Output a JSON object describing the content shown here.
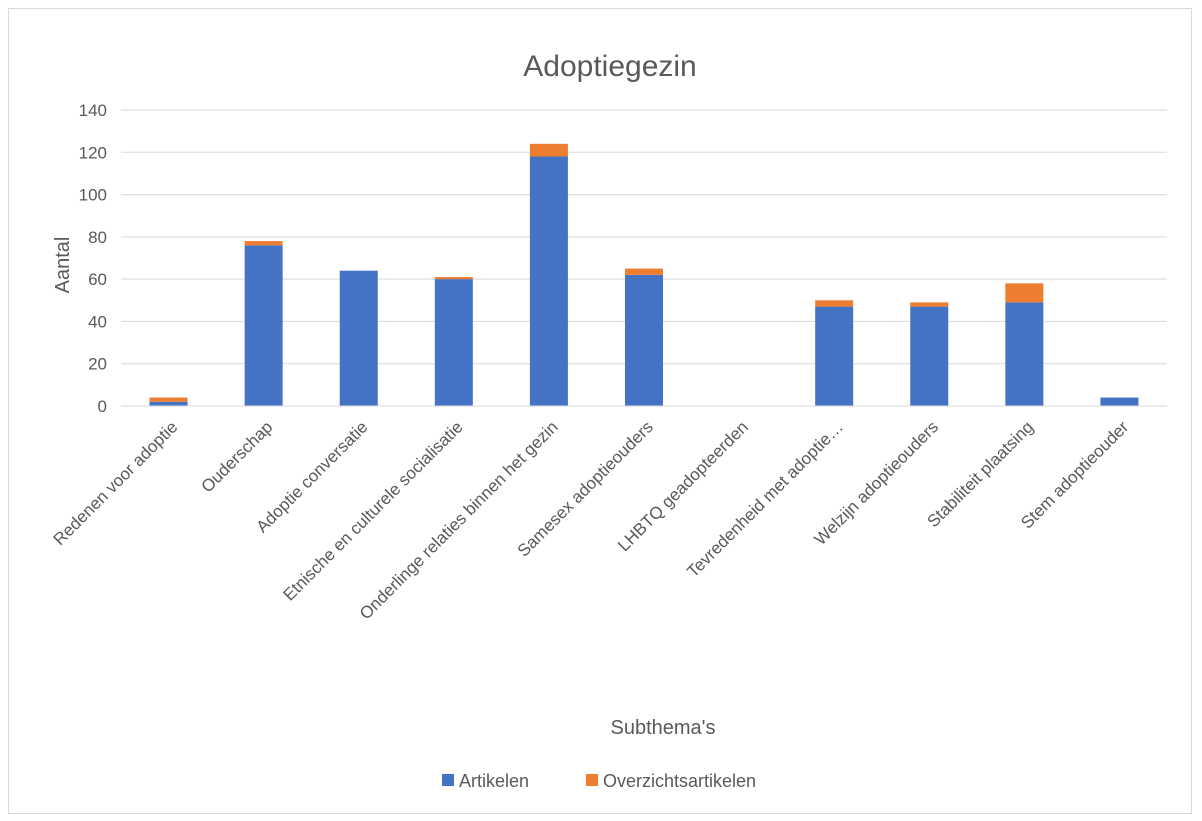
{
  "chart_data": {
    "type": "bar",
    "stacked": true,
    "title": "Adoptiegezin",
    "xlabel": "Subthema's",
    "ylabel": "Aantal",
    "ylim": [
      0,
      140
    ],
    "yticks": [
      0,
      20,
      40,
      60,
      80,
      100,
      120,
      140
    ],
    "grid": true,
    "legend_position": "bottom",
    "categories": [
      "Redenen voor adoptie",
      "Ouderschap",
      "Adoptie conversatie",
      "Etnische en culturele socialisatie",
      "Onderlinge relaties binnen het gezin",
      "Samesex adoptieouders",
      "LHBTQ geadopteerden",
      "Tevredenheid met adoptie…",
      "Welzijn adoptieouders",
      "Stabiliteit plaatsing",
      "Stem adoptieouder"
    ],
    "series": [
      {
        "name": "Artikelen",
        "color": "#4472c4",
        "values": [
          2,
          76,
          64,
          60,
          118,
          62,
          0,
          47,
          47,
          49,
          4
        ]
      },
      {
        "name": "Overzichtsartikelen",
        "color": "#ed7d31",
        "values": [
          2,
          2,
          0,
          1,
          6,
          3,
          0,
          3,
          2,
          9,
          0
        ]
      }
    ]
  }
}
